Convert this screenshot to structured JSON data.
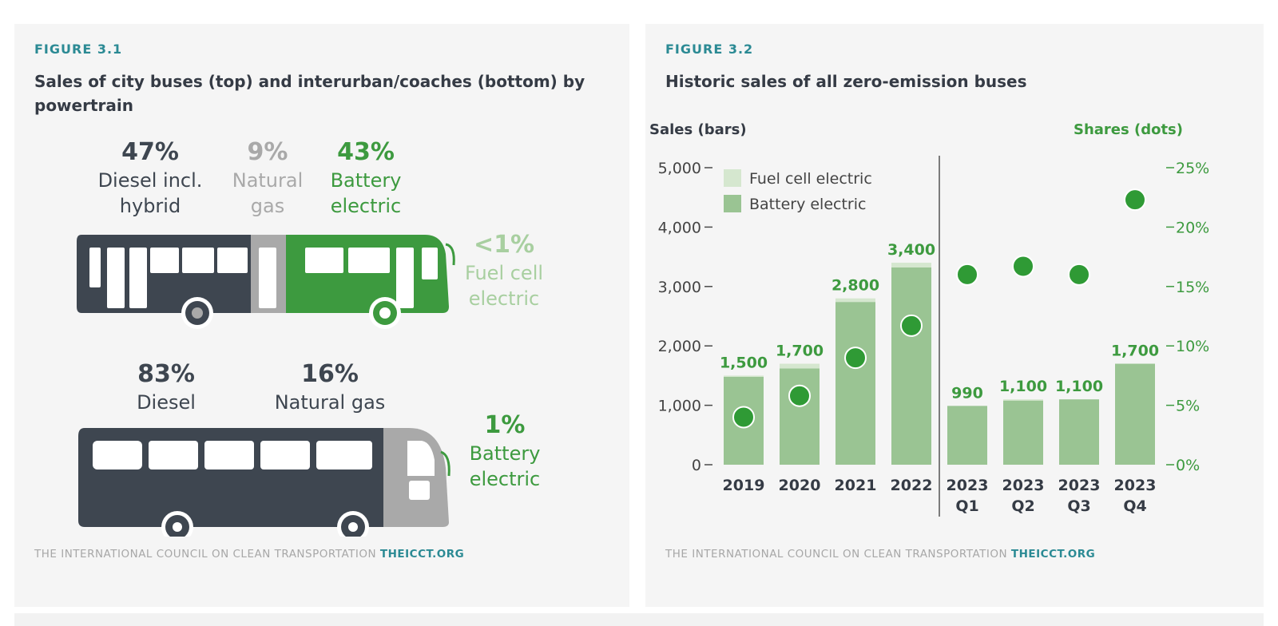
{
  "colors": {
    "dark": "#3e4650",
    "gray": "#a9a9a9",
    "green": "#3d9a3f",
    "light_green": "#a8cfa0",
    "bar": "#9ac493",
    "fuel_cell": "#d5e7cf",
    "dot": "#2f9a35",
    "teal": "#2b8a94"
  },
  "figure1": {
    "label": "FIGURE 3.1",
    "title": "Sales of city buses (top) and interurban/coaches (bottom) by powertrain",
    "city": {
      "diesel": {
        "pct": "47%",
        "label_line1": "Diesel incl.",
        "label_line2": "hybrid",
        "share": 47
      },
      "gas": {
        "pct": "9%",
        "label_line1": "Natural",
        "label_line2": "gas",
        "share": 9
      },
      "battery": {
        "pct": "43%",
        "label_line1": "Battery",
        "label_line2": "electric",
        "share": 43
      },
      "fuel_cell": {
        "pct": "<1%",
        "label_line1": "Fuel cell",
        "label_line2": "electric"
      }
    },
    "coach": {
      "diesel": {
        "pct": "83%",
        "label": "Diesel",
        "share": 83
      },
      "gas": {
        "pct": "16%",
        "label": "Natural gas",
        "share": 16
      },
      "battery": {
        "pct": "1%",
        "label_line1": "Battery",
        "label_line2": "electric",
        "share": 1
      }
    },
    "footer": "THE INTERNATIONAL COUNCIL ON CLEAN TRANSPORTATION",
    "footer_brand": "THEICCT.ORG"
  },
  "figure2": {
    "label": "FIGURE 3.2",
    "title": "Historic sales of all zero-emission buses",
    "left_axis_title": "Sales (bars)",
    "right_axis_title": "Shares (dots)",
    "footer": "THE INTERNATIONAL COUNCIL ON CLEAN TRANSPORTATION",
    "footer_brand": "THEICCT.ORG"
  },
  "chart_data": [
    {
      "type": "bar",
      "title": "Historic sales of all zero-emission buses",
      "categories": [
        [
          "2019"
        ],
        [
          "2020"
        ],
        [
          "2021"
        ],
        [
          "2022"
        ],
        [
          "2023",
          "Q1"
        ],
        [
          "2023",
          "Q2"
        ],
        [
          "2023",
          "Q3"
        ],
        [
          "2023",
          "Q4"
        ]
      ],
      "ylabel": "Sales (bars)",
      "y2label": "Shares (dots)",
      "ylim": [
        0,
        5000
      ],
      "y2lim": [
        0,
        25
      ],
      "yticks": [
        "0",
        "1,000",
        "2,000",
        "3,000",
        "4,000",
        "5,000"
      ],
      "y2ticks": [
        "0%",
        "5%",
        "10%",
        "15%",
        "20%",
        "25%"
      ],
      "totals_labels": [
        "1,500",
        "1,700",
        "2,800",
        "3,400",
        "990",
        "1,100",
        "1,100",
        "1,700"
      ],
      "series": [
        {
          "name": "Battery electric",
          "values": [
            1480,
            1620,
            2740,
            3320,
            990,
            1080,
            1100,
            1700
          ]
        },
        {
          "name": "Fuel cell electric",
          "values": [
            20,
            80,
            60,
            80,
            0,
            20,
            0,
            0
          ]
        },
        {
          "name": "Shares (dots)",
          "kind": "dots",
          "values": [
            4,
            5.8,
            9,
            11.7,
            16,
            16.7,
            16,
            22.3
          ]
        }
      ],
      "legend": "top-left",
      "divider_after_index": 3
    }
  ]
}
